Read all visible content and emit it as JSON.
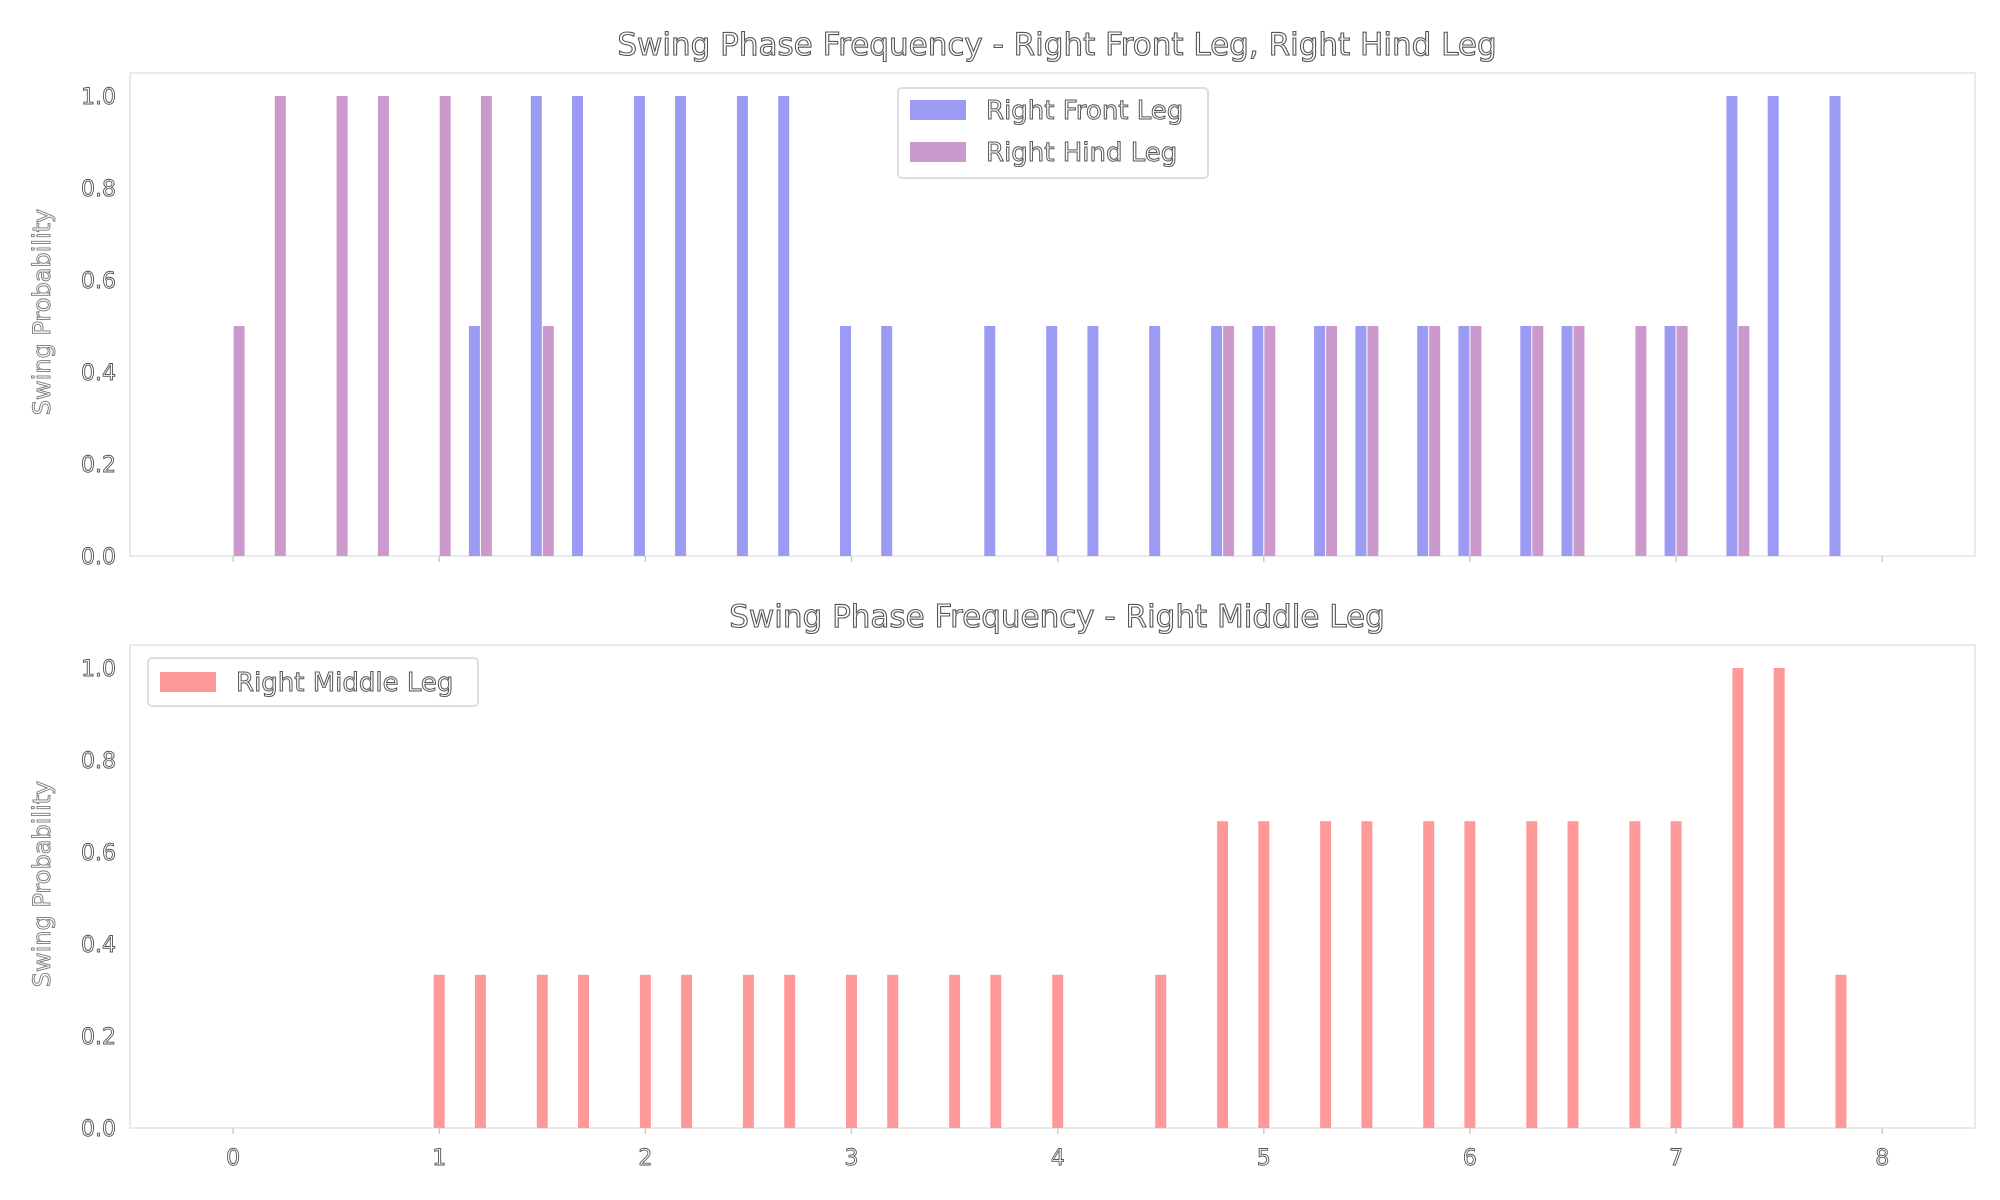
{
  "chart_data": [
    {
      "type": "bar",
      "title": "Swing Phase Frequency - Right Front Leg, Right Hind Leg",
      "ylabel": "Swing Probability",
      "xlabel": "",
      "xlim": [
        -0.5,
        8.45
      ],
      "ylim": [
        0,
        1.05
      ],
      "xticks": [
        "0",
        "1",
        "2",
        "3",
        "4",
        "5",
        "6",
        "7",
        "8"
      ],
      "yticks": [
        "0.0",
        "0.2",
        "0.4",
        "0.6",
        "0.8",
        "1.0"
      ],
      "x_tick_labels_visible": false,
      "legend_position": "upper center",
      "series": [
        {
          "name": "Right Front Leg",
          "color": "#9b9bf4",
          "x": [
            1.2,
            1.5,
            1.7,
            2.0,
            2.2,
            2.5,
            2.7,
            3.0,
            3.2,
            3.7,
            4.0,
            4.2,
            4.5,
            4.8,
            5.0,
            5.3,
            5.5,
            5.8,
            6.0,
            6.3,
            6.5,
            7.0,
            7.3,
            7.5,
            7.8
          ],
          "values": [
            0.5,
            1.0,
            1.0,
            1.0,
            1.0,
            1.0,
            1.0,
            0.5,
            0.5,
            0.5,
            0.5,
            0.5,
            0.5,
            0.5,
            0.5,
            0.5,
            0.5,
            0.5,
            0.5,
            0.5,
            0.5,
            0.5,
            1.0,
            1.0,
            1.0
          ]
        },
        {
          "name": "Right Hind Leg",
          "color": "#cc99cc",
          "x": [
            0.0,
            0.2,
            0.5,
            0.7,
            1.0,
            1.2,
            1.5,
            4.8,
            5.0,
            5.3,
            5.5,
            5.8,
            6.0,
            6.3,
            6.5,
            6.8,
            7.0,
            7.3
          ],
          "values": [
            0.5,
            1.0,
            1.0,
            1.0,
            1.0,
            1.0,
            0.5,
            0.5,
            0.5,
            0.5,
            0.5,
            0.5,
            0.5,
            0.5,
            0.5,
            0.5,
            0.5,
            0.5
          ]
        }
      ]
    },
    {
      "type": "bar",
      "title": "Swing Phase Frequency - Right Middle Leg",
      "ylabel": "Swing Probability",
      "xlabel": "",
      "xlim": [
        -0.5,
        8.45
      ],
      "ylim": [
        0,
        1.05
      ],
      "xticks": [
        "0",
        "1",
        "2",
        "3",
        "4",
        "5",
        "6",
        "7",
        "8"
      ],
      "yticks": [
        "0.0",
        "0.2",
        "0.4",
        "0.6",
        "0.8",
        "1.0"
      ],
      "x_tick_labels_visible": true,
      "legend_position": "upper left",
      "series": [
        {
          "name": "Right Middle Leg",
          "color": "#ff9999",
          "x": [
            1.0,
            1.2,
            1.5,
            1.7,
            2.0,
            2.2,
            2.5,
            2.7,
            3.0,
            3.2,
            3.5,
            3.7,
            4.0,
            4.5,
            4.8,
            5.0,
            5.3,
            5.5,
            5.8,
            6.0,
            6.3,
            6.5,
            6.8,
            7.0,
            7.3,
            7.5,
            7.8
          ],
          "values": [
            0.333,
            0.333,
            0.333,
            0.333,
            0.333,
            0.333,
            0.333,
            0.333,
            0.333,
            0.333,
            0.333,
            0.333,
            0.333,
            0.333,
            0.667,
            0.667,
            0.667,
            0.667,
            0.667,
            0.667,
            0.667,
            0.667,
            0.667,
            0.667,
            1.0,
            1.0,
            0.333
          ]
        }
      ]
    }
  ]
}
